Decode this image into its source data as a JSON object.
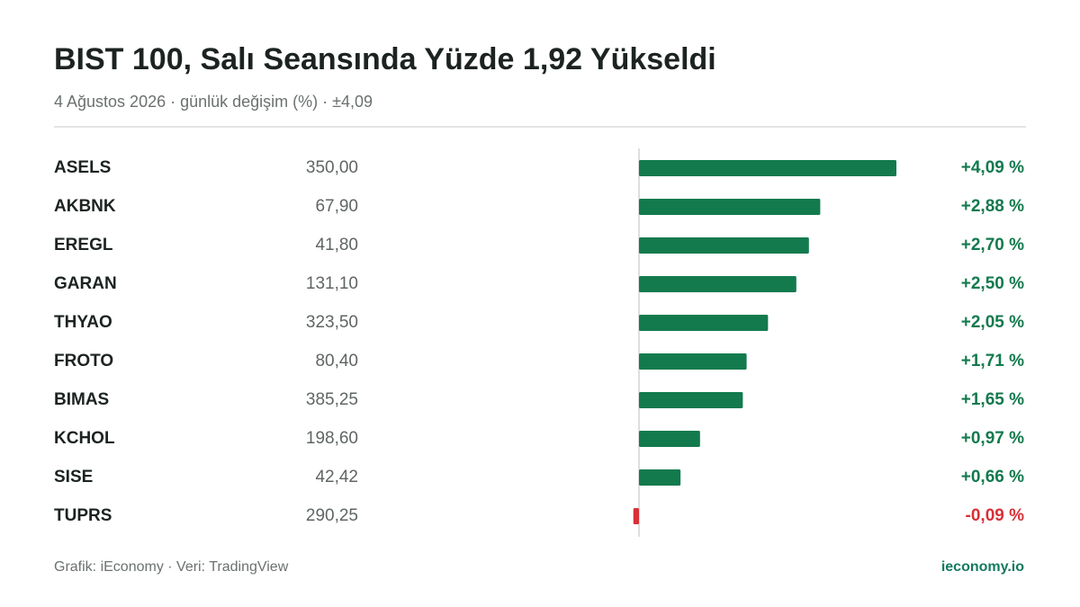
{
  "chart_data": {
    "type": "bar",
    "orientation": "horizontal",
    "title": "BIST 100, Salı Seansında Yüzde 1,92 Yükseldi",
    "subtitle": "4 Ağustos 2026 · günlük değişim (%) · ±4,09",
    "categories": [
      "ASELS",
      "AKBNK",
      "EREGL",
      "GARAN",
      "THYAO",
      "FROTO",
      "BIMAS",
      "KCHOL",
      "SISE",
      "TUPRS"
    ],
    "prices": [
      "350,00",
      "67,90",
      "41,80",
      "131,10",
      "323,50",
      "80,40",
      "385,25",
      "198,60",
      "42,42",
      "290,25"
    ],
    "values": [
      4.09,
      2.88,
      2.7,
      2.5,
      2.05,
      1.71,
      1.65,
      0.97,
      0.66,
      -0.09
    ],
    "value_labels": [
      "+4,09 %",
      "+2,88 %",
      "+2,70 %",
      "+2,50 %",
      "+2,05 %",
      "+1,71 %",
      "+1,65 %",
      "+0,97 %",
      "+0,66 %",
      "-0,09 %"
    ],
    "xlim": [
      -4.09,
      4.09
    ],
    "positive_color": "#137a4e",
    "negative_color": "#d93036",
    "source": "Grafik: iEconomy · Veri: TradingView",
    "brand": "ieconomy.io"
  }
}
